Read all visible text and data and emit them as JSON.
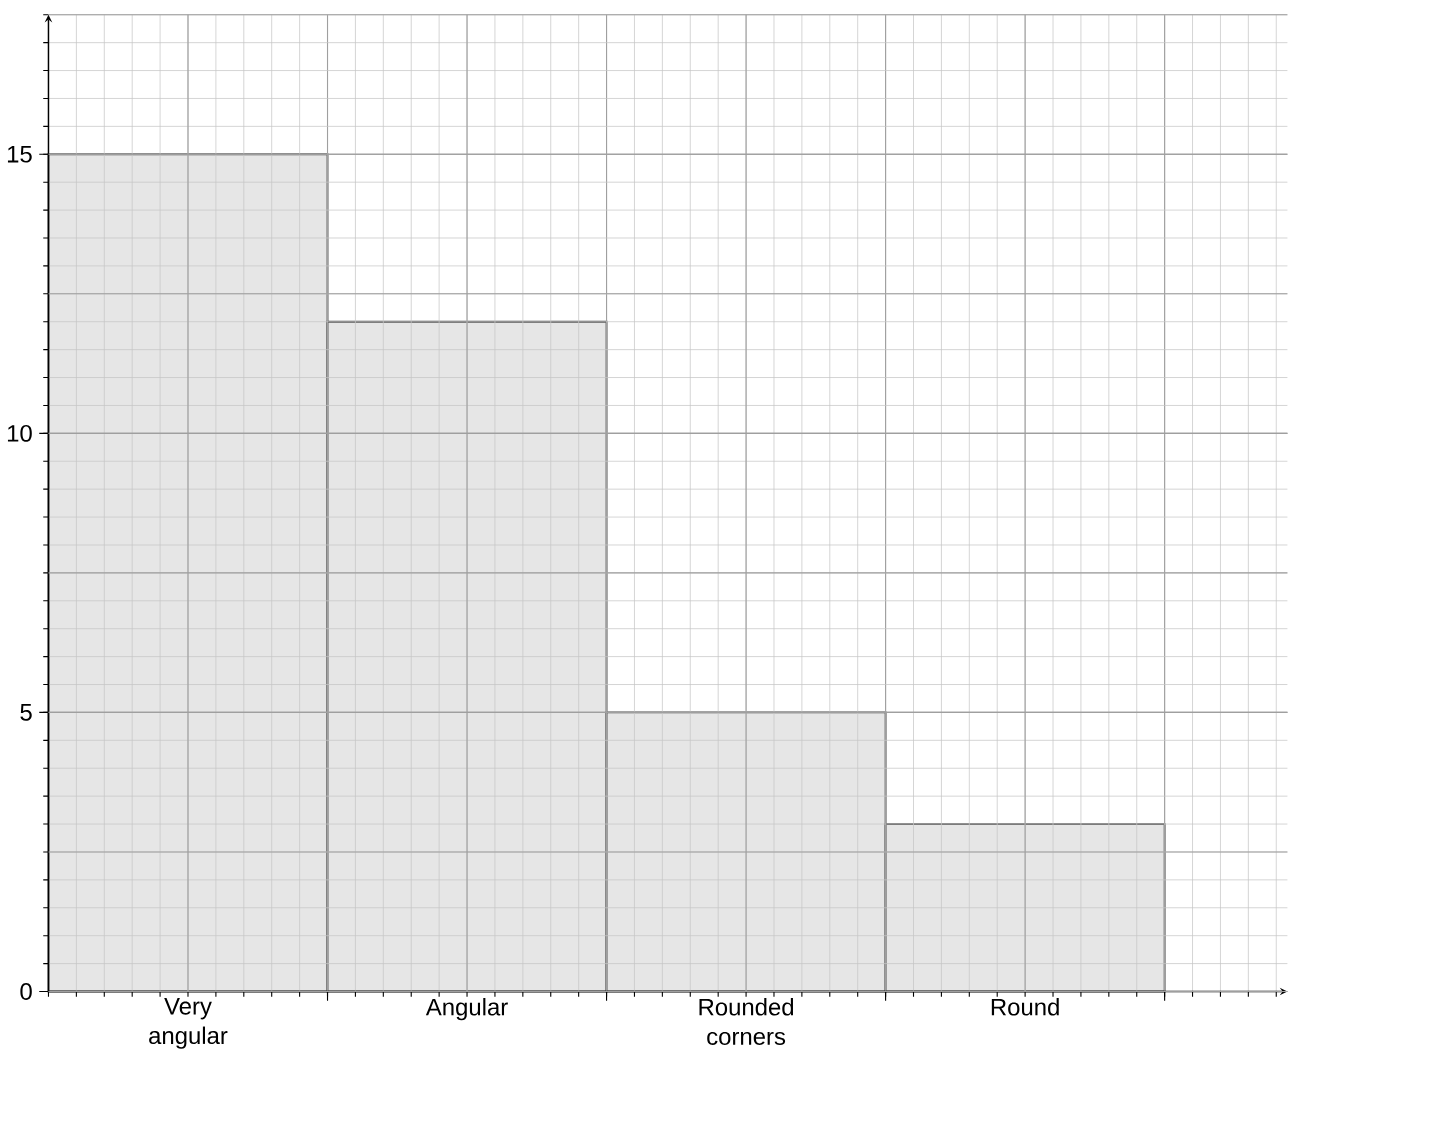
{
  "chart_data": {
    "type": "bar",
    "categories": [
      "Very angular",
      "Angular",
      "Rounded corners",
      "Round"
    ],
    "values": [
      15,
      12,
      5,
      3
    ],
    "color": "#e6e6e6",
    "ylim": [
      0,
      17.5
    ],
    "yticks": [
      0,
      5,
      10,
      15
    ],
    "grid": true
  }
}
